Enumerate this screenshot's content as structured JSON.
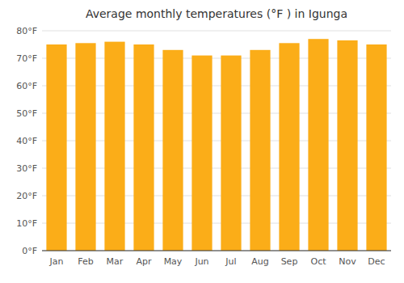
{
  "chart_data": {
    "type": "bar",
    "title": "Average monthly temperatures (°F ) in Igunga",
    "categories": [
      "Jan",
      "Feb",
      "Mar",
      "Apr",
      "May",
      "Jun",
      "Jul",
      "Aug",
      "Sep",
      "Oct",
      "Nov",
      "Dec"
    ],
    "values": [
      75,
      75.5,
      76,
      75,
      73,
      71,
      71,
      73,
      75.5,
      77,
      76.5,
      75
    ],
    "color": "#FBAD18",
    "ylim": [
      0,
      80
    ],
    "yticks": [
      {
        "value": 0,
        "label": "0°F"
      },
      {
        "value": 10,
        "label": "10°F"
      },
      {
        "value": 20,
        "label": "20°F"
      },
      {
        "value": 30,
        "label": "30°F"
      },
      {
        "value": 40,
        "label": "40°F"
      },
      {
        "value": 50,
        "label": "50°F"
      },
      {
        "value": 60,
        "label": "60°F"
      },
      {
        "value": 70,
        "label": "70°F"
      },
      {
        "value": 80,
        "label": "80°F"
      }
    ],
    "grid": true
  }
}
